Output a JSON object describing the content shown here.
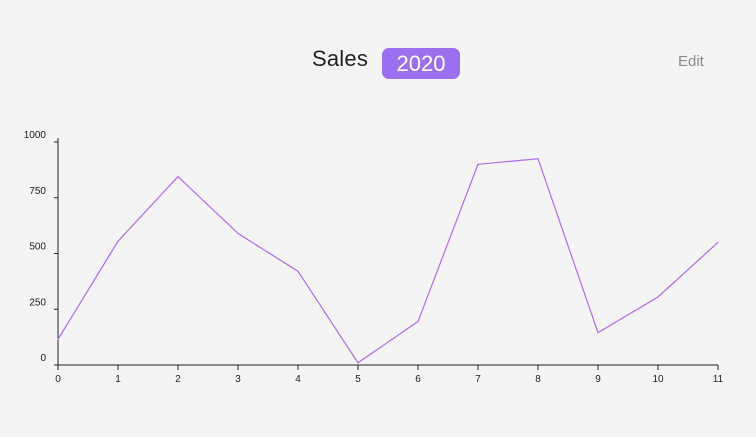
{
  "header": {
    "title": "Sales",
    "year": "2020",
    "edit_label": "Edit"
  },
  "colors": {
    "background": "#f4f4f4",
    "accent": "#9c6ff0",
    "line": "#b36ae6",
    "axis": "#222222"
  },
  "chart_data": {
    "type": "line",
    "x": [
      0,
      1,
      2,
      3,
      4,
      5,
      6,
      7,
      8,
      9,
      10,
      11
    ],
    "series": [
      {
        "values": [
          115,
          555,
          845,
          590,
          420,
          10,
          195,
          900,
          925,
          145,
          305,
          550
        ]
      }
    ],
    "xlim": [
      0,
      11
    ],
    "ylim": [
      0,
      1000
    ],
    "y_ticks": [
      0,
      250,
      500,
      750,
      1000
    ],
    "x_ticks": [
      0,
      1,
      2,
      3,
      4,
      5,
      6,
      7,
      8,
      9,
      10,
      11
    ],
    "grid": false,
    "legend": "none"
  }
}
